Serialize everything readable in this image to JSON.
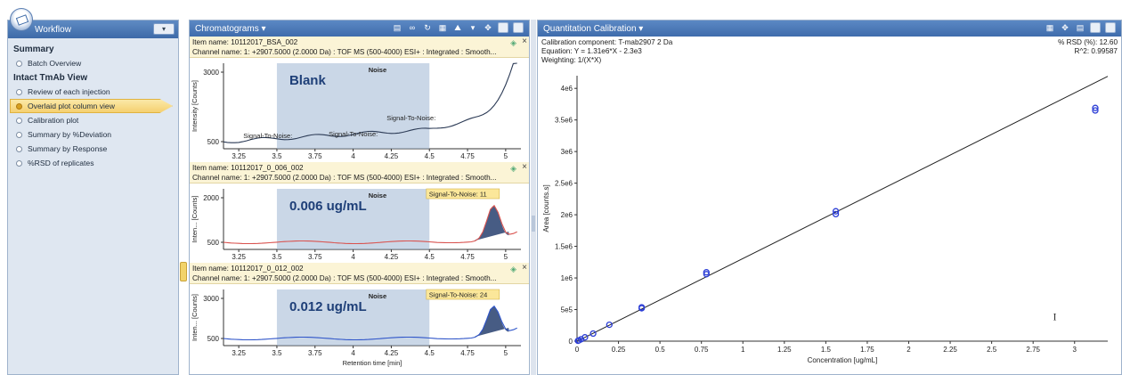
{
  "workflow": {
    "title": "Workflow",
    "menu_button": "▾",
    "sections": [
      {
        "heading": "Summary",
        "items": [
          {
            "label": "Batch Overview",
            "active": false
          }
        ]
      },
      {
        "heading": "Intact TmAb View",
        "items": [
          {
            "label": "Review of each injection",
            "active": false
          },
          {
            "label": "Overlaid plot column view",
            "active": true
          },
          {
            "label": "Calibration plot",
            "active": false
          },
          {
            "label": "Summary by %Deviation",
            "active": false
          },
          {
            "label": "Summary by Response",
            "active": false
          },
          {
            "label": "%RSD of replicates",
            "active": false
          }
        ]
      }
    ]
  },
  "chromatograms": {
    "title": "Chromatograms ▾",
    "items": [
      {
        "item_name": "Item name: 10112017_BSA_002",
        "channel": "Channel name: 1: +2907.5000 (2.0000 Da) : TOF MS (500-4000) ESI+ : Integrated : Smooth...",
        "ylabel": "Intensity [Counts]",
        "yticks": [
          "3000",
          "500"
        ],
        "overlay_label": "Blank",
        "noise_label": "Noise",
        "sn_labels": [
          "Signal-To-Noise:",
          "Signal-To-Noise:",
          "Signal-To-Noise:"
        ],
        "trace_color": "#2b3a55"
      },
      {
        "item_name": "Item name: 10112017_0_006_002",
        "channel": "Channel name: 1: +2907.5000 (2.0000 Da) : TOF MS (500-4000) ESI+ : Integrated : Smooth...",
        "ylabel": "Inten... [Counts]",
        "yticks": [
          "2000",
          "500"
        ],
        "overlay_label": "0.006 ug/mL",
        "noise_label": "Noise",
        "sn_badge": "Signal-To-Noise: 11",
        "trace_color": "#d9534f"
      },
      {
        "item_name": "Item name: 10112017_0_012_002",
        "channel": "Channel name: 1: +2907.5000 (2.0000 Da) : TOF MS (500-4000) ESI+ : Integrated : Smooth...",
        "ylabel": "Inten... [Counts]",
        "yticks": [
          "3000",
          "500"
        ],
        "overlay_label": "0.012 ug/mL",
        "noise_label": "Noise",
        "sn_badge": "Signal-To-Noise: 24",
        "trace_color": "#2f55c9"
      }
    ],
    "xticks": [
      "3.25",
      "3.5",
      "3.75",
      "4",
      "4.25",
      "4.5",
      "4.75",
      "5"
    ],
    "xlabel": "Retention time [min]"
  },
  "quantitation": {
    "title": "Quantitation Calibration ▾",
    "component": "Calibration component: T-mab2907 2 Da",
    "equation": "Equation: Y = 1.31e6*X - 2.3e3",
    "weighting": "Weighting: 1/(X*X)",
    "rsd": "% RSD (%): 12.60",
    "r2": "R^2: 0.99587"
  },
  "chart_data": {
    "type": "scatter",
    "title": "",
    "xlabel": "Concentration [ug/mL]",
    "ylabel": "Area [counts.s]",
    "xlim": [
      0,
      3.2
    ],
    "ylim": [
      0,
      4200000
    ],
    "xticks": [
      "0",
      "0.25",
      "0.5",
      "0.75",
      "1",
      "1.25",
      "1.5",
      "1.75",
      "2",
      "2.25",
      "2.5",
      "2.75",
      "3"
    ],
    "yticks": [
      "0",
      "5e5",
      "1e6",
      "1.5e6",
      "2e6",
      "2.5e6",
      "3e6",
      "3.5e6",
      "4e6"
    ],
    "points": [
      {
        "x": 0.006,
        "y": 5000
      },
      {
        "x": 0.012,
        "y": 12000
      },
      {
        "x": 0.024,
        "y": 30000
      },
      {
        "x": 0.048,
        "y": 60000
      },
      {
        "x": 0.097,
        "y": 120000
      },
      {
        "x": 0.195,
        "y": 260000
      },
      {
        "x": 0.39,
        "y": 520000
      },
      {
        "x": 0.39,
        "y": 535000
      },
      {
        "x": 0.78,
        "y": 1060000
      },
      {
        "x": 0.78,
        "y": 1090000
      },
      {
        "x": 1.56,
        "y": 2010000
      },
      {
        "x": 1.56,
        "y": 2055000
      },
      {
        "x": 3.125,
        "y": 3650000
      },
      {
        "x": 3.125,
        "y": 3690000
      }
    ],
    "fit_line": {
      "slope": 1310000,
      "intercept": -2300
    },
    "grid": false,
    "point_color": "#2c3ed6"
  }
}
